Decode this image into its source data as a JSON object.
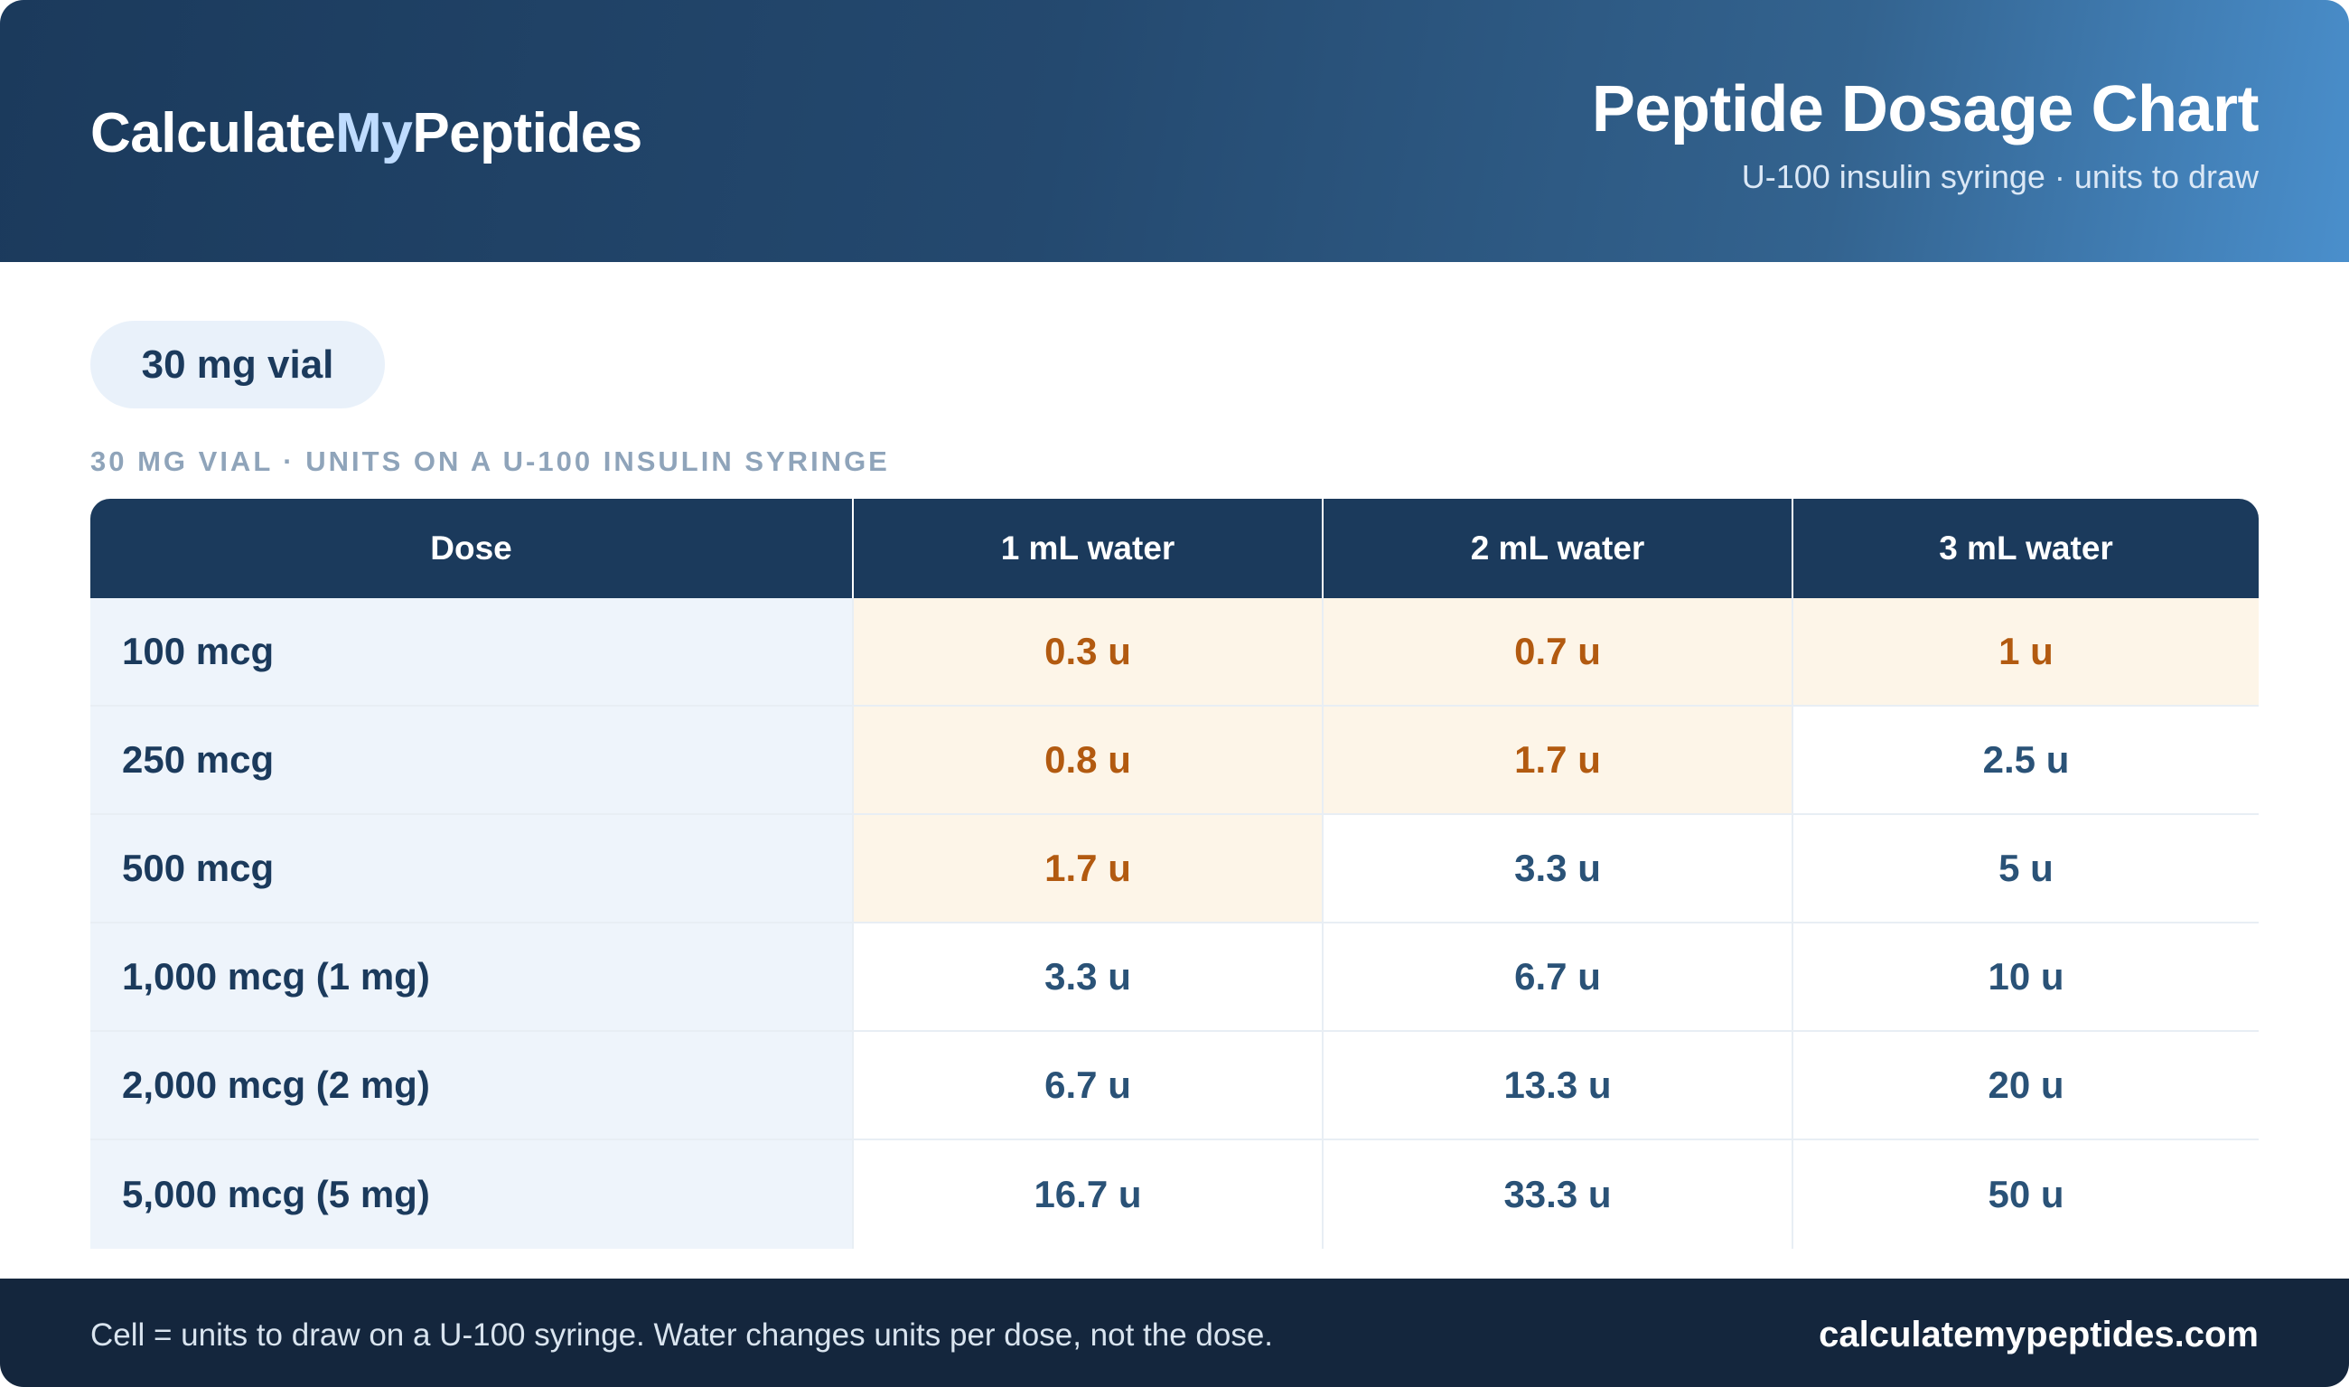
{
  "header": {
    "brand_part1": "Calculate",
    "brand_part2": "My",
    "brand_part3": "Peptides",
    "title": "Peptide Dosage Chart",
    "subtitle": "U-100 insulin syringe · units to draw"
  },
  "vial_pill": "30 mg vial",
  "caption": "30 MG VIAL · UNITS ON A U-100 INSULIN SYRINGE",
  "table": {
    "headers": [
      "Dose",
      "1 mL water",
      "2 mL water",
      "3 mL water"
    ],
    "rows": [
      {
        "dose": "100 mcg",
        "cells": [
          "0.3 u",
          "0.7 u",
          "1 u"
        ],
        "highlight": [
          true,
          true,
          true
        ]
      },
      {
        "dose": "250 mcg",
        "cells": [
          "0.8 u",
          "1.7 u",
          "2.5 u"
        ],
        "highlight": [
          true,
          true,
          false
        ]
      },
      {
        "dose": "500 mcg",
        "cells": [
          "1.7 u",
          "3.3 u",
          "5 u"
        ],
        "highlight": [
          true,
          false,
          false
        ]
      },
      {
        "dose": "1,000 mcg (1 mg)",
        "cells": [
          "3.3 u",
          "6.7 u",
          "10 u"
        ],
        "highlight": [
          false,
          false,
          false
        ]
      },
      {
        "dose": "2,000 mcg (2 mg)",
        "cells": [
          "6.7 u",
          "13.3 u",
          "20 u"
        ],
        "highlight": [
          false,
          false,
          false
        ]
      },
      {
        "dose": "5,000 mcg (5 mg)",
        "cells": [
          "16.7 u",
          "33.3 u",
          "50 u"
        ],
        "highlight": [
          false,
          false,
          false
        ]
      }
    ]
  },
  "footer": {
    "note": "Cell = units to draw on a U-100 syringe. Water changes units per dose, not the dose.",
    "site": "calculatemypeptides.com"
  },
  "colors": {
    "header_dark": "#1b3a5c",
    "header_light": "#4a8fcc",
    "highlight_bg": "#fdf5e8",
    "highlight_text": "#b25a10",
    "value_text": "#2a5277",
    "footer_bg": "#14263d"
  }
}
